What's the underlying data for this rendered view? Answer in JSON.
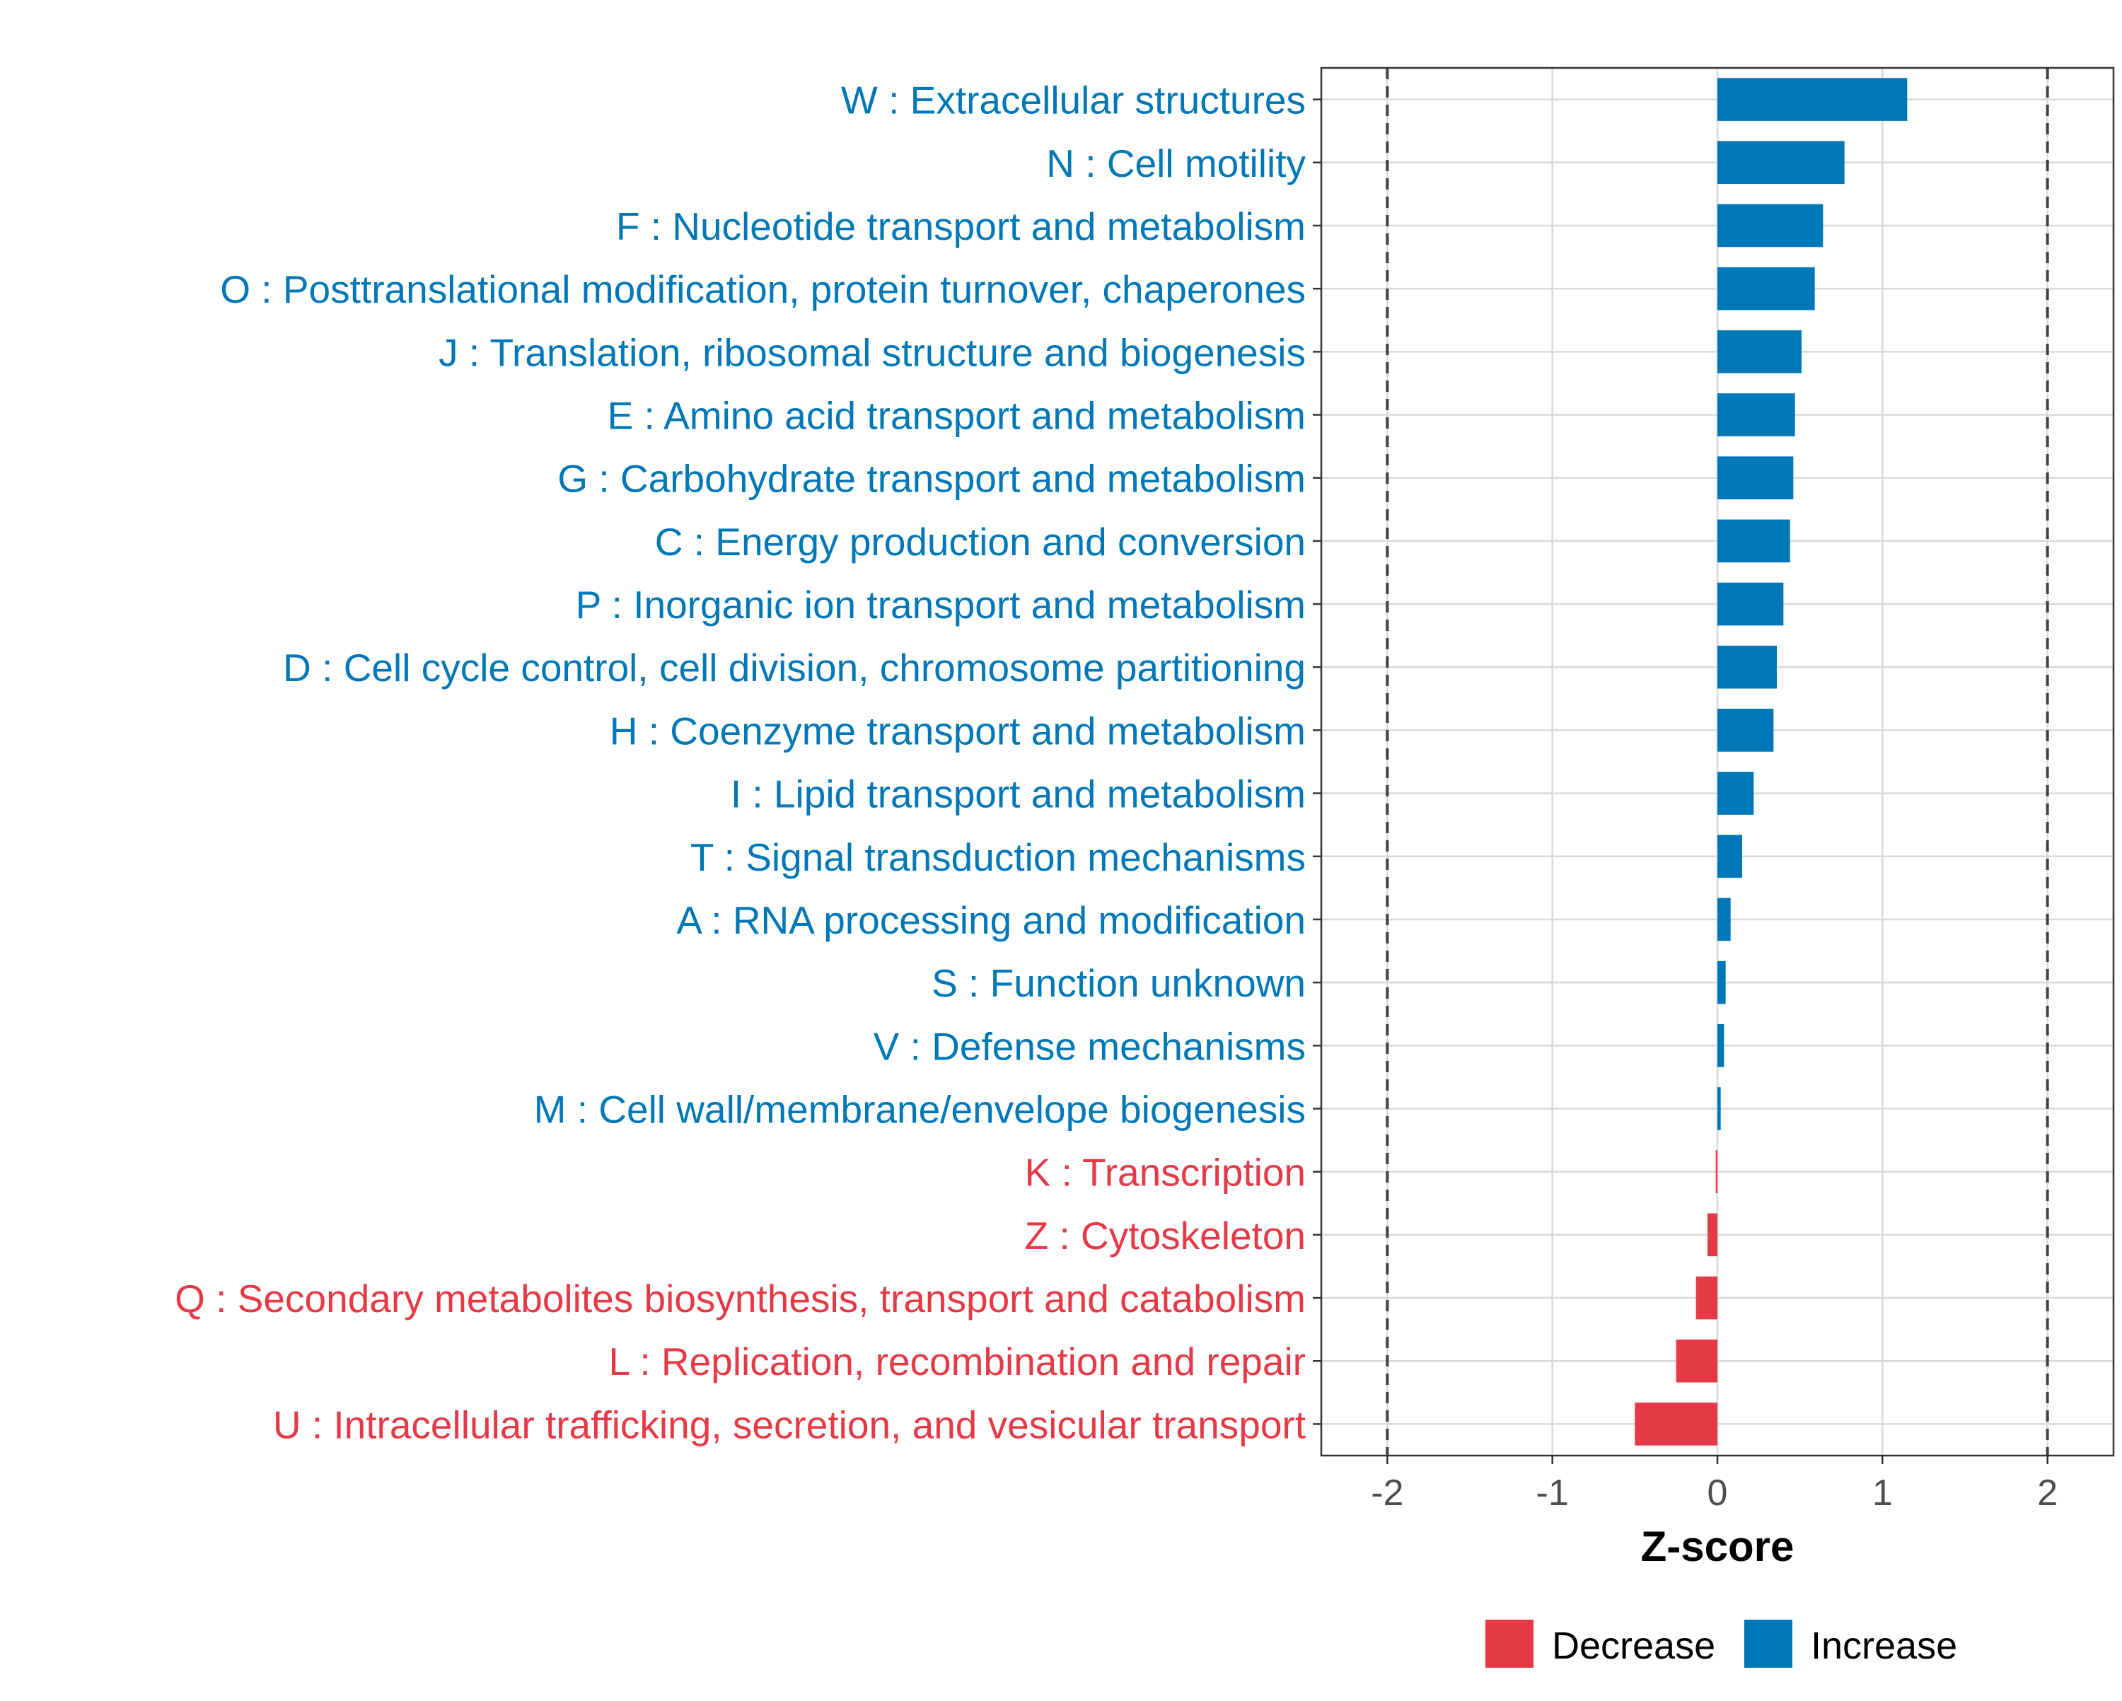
{
  "chart_data": {
    "type": "bar",
    "orientation": "horizontal",
    "title": "",
    "xlabel": "Z-score",
    "ylabel": "",
    "xlim": [
      -2.4,
      2.4
    ],
    "x_ticks": [
      -2,
      -1,
      0,
      1,
      2
    ],
    "x_tick_labels": [
      "-2",
      "-1",
      "0",
      "1",
      "2"
    ],
    "threshold_lines": [
      -2,
      2
    ],
    "grid": true,
    "colors": {
      "Decrease": "#E63946",
      "Increase": "#0077B6"
    },
    "categories": [
      "W : Extracellular structures",
      "N : Cell motility",
      "F : Nucleotide transport and metabolism",
      "O : Posttranslational modification, protein turnover, chaperones",
      "J : Translation, ribosomal structure and biogenesis",
      "E : Amino acid transport and metabolism",
      "G : Carbohydrate transport and metabolism",
      "C : Energy production and conversion",
      "P : Inorganic ion transport and metabolism",
      "D : Cell cycle control, cell division, chromosome partitioning",
      "H : Coenzyme transport and metabolism",
      "I : Lipid transport and metabolism",
      "T : Signal transduction mechanisms",
      "A : RNA processing and modification",
      "S : Function unknown",
      "V : Defense mechanisms",
      "M : Cell wall/membrane/envelope biogenesis",
      "K : Transcription",
      "Z : Cytoskeleton",
      "Q : Secondary metabolites biosynthesis, transport and catabolism",
      "L : Replication, recombination and repair",
      "U : Intracellular trafficking, secretion, and vesicular transport"
    ],
    "values": [
      1.15,
      0.77,
      0.64,
      0.59,
      0.51,
      0.47,
      0.46,
      0.44,
      0.4,
      0.36,
      0.34,
      0.22,
      0.15,
      0.08,
      0.05,
      0.04,
      0.02,
      -0.01,
      -0.06,
      -0.13,
      -0.25,
      -0.5
    ],
    "groups": [
      "Increase",
      "Increase",
      "Increase",
      "Increase",
      "Increase",
      "Increase",
      "Increase",
      "Increase",
      "Increase",
      "Increase",
      "Increase",
      "Increase",
      "Increase",
      "Increase",
      "Increase",
      "Increase",
      "Increase",
      "Decrease",
      "Decrease",
      "Decrease",
      "Decrease",
      "Decrease"
    ],
    "legend": {
      "position": "bottom",
      "entries": [
        "Decrease",
        "Increase"
      ]
    }
  }
}
